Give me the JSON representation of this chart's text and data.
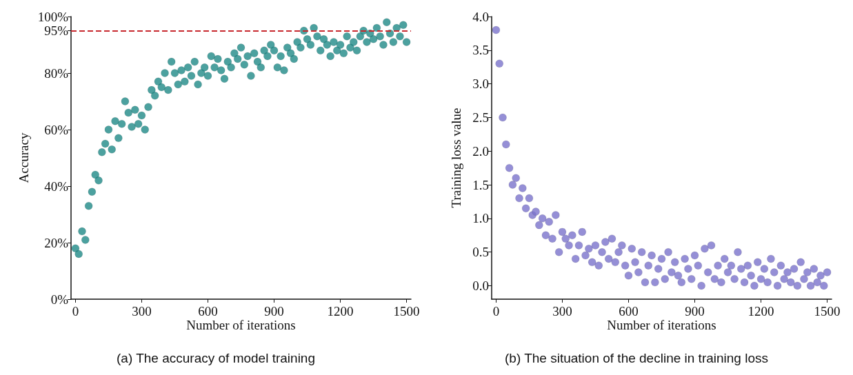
{
  "chart_data": [
    {
      "type": "scatter",
      "title": "(a) The accuracy of model training",
      "xlabel": "Number of iterations",
      "ylabel": "Accuracy",
      "marker": "circle",
      "grid": false,
      "xlim": [
        -20,
        1520
      ],
      "xticks": [
        0,
        300,
        600,
        900,
        1200,
        1500
      ],
      "ylim": [
        0,
        100
      ],
      "yticks": [
        {
          "value": 0,
          "label": "0%"
        },
        {
          "value": 20,
          "label": "20%"
        },
        {
          "value": 40,
          "label": "40%"
        },
        {
          "value": 60,
          "label": "60%"
        },
        {
          "value": 80,
          "label": "80%"
        },
        {
          "value": 95,
          "label": "95%"
        },
        {
          "value": 100,
          "label": "100%"
        }
      ],
      "ref_lines": [
        {
          "axis": "y",
          "value": 95,
          "color": "#c8282d",
          "line_style": "dashed"
        }
      ],
      "x": [
        0,
        15,
        30,
        45,
        60,
        75,
        90,
        105,
        120,
        135,
        150,
        165,
        180,
        195,
        210,
        225,
        240,
        255,
        270,
        285,
        300,
        315,
        330,
        345,
        360,
        375,
        390,
        405,
        420,
        435,
        450,
        465,
        480,
        495,
        510,
        525,
        540,
        555,
        570,
        585,
        600,
        615,
        630,
        645,
        660,
        675,
        690,
        705,
        720,
        735,
        750,
        765,
        780,
        795,
        810,
        825,
        840,
        855,
        870,
        885,
        900,
        915,
        930,
        945,
        960,
        975,
        990,
        1005,
        1020,
        1035,
        1050,
        1065,
        1080,
        1095,
        1110,
        1125,
        1140,
        1155,
        1170,
        1185,
        1200,
        1215,
        1230,
        1245,
        1260,
        1275,
        1290,
        1305,
        1320,
        1335,
        1350,
        1365,
        1380,
        1395,
        1410,
        1425,
        1440,
        1455,
        1470,
        1485,
        1500
      ],
      "series": [
        {
          "color": "#1f8a87",
          "values": [
            18,
            16,
            24,
            21,
            33,
            38,
            44,
            42,
            52,
            55,
            60,
            53,
            63,
            57,
            62,
            70,
            66,
            61,
            67,
            62,
            65,
            60,
            68,
            74,
            72,
            77,
            75,
            80,
            74,
            84,
            80,
            76,
            81,
            77,
            82,
            79,
            84,
            76,
            80,
            82,
            79,
            86,
            82,
            85,
            81,
            78,
            84,
            82,
            87,
            85,
            89,
            83,
            86,
            79,
            87,
            84,
            82,
            88,
            86,
            90,
            88,
            82,
            86,
            81,
            89,
            87,
            85,
            91,
            89,
            95,
            92,
            90,
            96,
            93,
            88,
            92,
            90,
            86,
            91,
            88,
            90,
            87,
            93,
            89,
            91,
            88,
            93,
            95,
            91,
            94,
            92,
            96,
            93,
            90,
            98,
            94,
            91,
            96,
            93,
            97,
            91
          ]
        }
      ]
    },
    {
      "type": "scatter",
      "title": "(b) The situation of the decline in training loss",
      "xlabel": "Number of iterations",
      "ylabel": "Training loss value",
      "marker": "circle",
      "grid": false,
      "xlim": [
        -20,
        1520
      ],
      "xticks": [
        0,
        300,
        600,
        900,
        1200,
        1500
      ],
      "ylim": [
        -0.2,
        4.0
      ],
      "yticks": [
        {
          "value": 0,
          "label": "0.0"
        },
        {
          "value": 0.5,
          "label": "0.5"
        },
        {
          "value": 1,
          "label": "1.0"
        },
        {
          "value": 1.5,
          "label": "1.5"
        },
        {
          "value": 2,
          "label": "2.0"
        },
        {
          "value": 2.5,
          "label": "2.5"
        },
        {
          "value": 3,
          "label": "3.0"
        },
        {
          "value": 3.5,
          "label": "3.5"
        },
        {
          "value": 4,
          "label": "4.0"
        }
      ],
      "x": [
        0,
        15,
        30,
        45,
        60,
        75,
        90,
        105,
        120,
        135,
        150,
        165,
        180,
        195,
        210,
        225,
        240,
        255,
        270,
        285,
        300,
        315,
        330,
        345,
        360,
        375,
        390,
        405,
        420,
        435,
        450,
        465,
        480,
        495,
        510,
        525,
        540,
        555,
        570,
        585,
        600,
        615,
        630,
        645,
        660,
        675,
        690,
        705,
        720,
        735,
        750,
        765,
        780,
        795,
        810,
        825,
        840,
        855,
        870,
        885,
        900,
        915,
        930,
        945,
        960,
        975,
        990,
        1005,
        1020,
        1035,
        1050,
        1065,
        1080,
        1095,
        1110,
        1125,
        1140,
        1155,
        1170,
        1185,
        1200,
        1215,
        1230,
        1245,
        1260,
        1275,
        1290,
        1305,
        1320,
        1335,
        1350,
        1365,
        1380,
        1395,
        1410,
        1425,
        1440,
        1455,
        1470,
        1485,
        1500
      ],
      "series": [
        {
          "color": "#7b73cc",
          "values": [
            3.8,
            3.3,
            2.5,
            2.1,
            1.75,
            1.5,
            1.6,
            1.3,
            1.45,
            1.15,
            1.3,
            1.05,
            1.1,
            0.9,
            1.0,
            0.75,
            0.95,
            0.7,
            1.05,
            0.5,
            0.8,
            0.7,
            0.6,
            0.75,
            0.4,
            0.6,
            0.8,
            0.45,
            0.55,
            0.35,
            0.6,
            0.3,
            0.5,
            0.65,
            0.4,
            0.7,
            0.35,
            0.5,
            0.6,
            0.3,
            0.15,
            0.55,
            0.35,
            0.2,
            0.5,
            0.05,
            0.3,
            0.45,
            0.05,
            0.25,
            0.4,
            0.1,
            0.5,
            0.2,
            0.35,
            0.15,
            0.05,
            0.4,
            0.25,
            0.1,
            0.45,
            0.3,
            0.0,
            0.55,
            0.2,
            0.6,
            0.1,
            0.3,
            0.05,
            0.4,
            0.2,
            0.3,
            0.1,
            0.5,
            0.25,
            0.05,
            0.3,
            0.15,
            0.0,
            0.35,
            0.1,
            0.25,
            0.05,
            0.4,
            0.2,
            0.0,
            0.3,
            0.1,
            0.2,
            0.05,
            0.25,
            0.0,
            0.35,
            0.1,
            0.2,
            0.0,
            0.25,
            0.05,
            0.15,
            0.0,
            0.2
          ]
        }
      ]
    }
  ]
}
